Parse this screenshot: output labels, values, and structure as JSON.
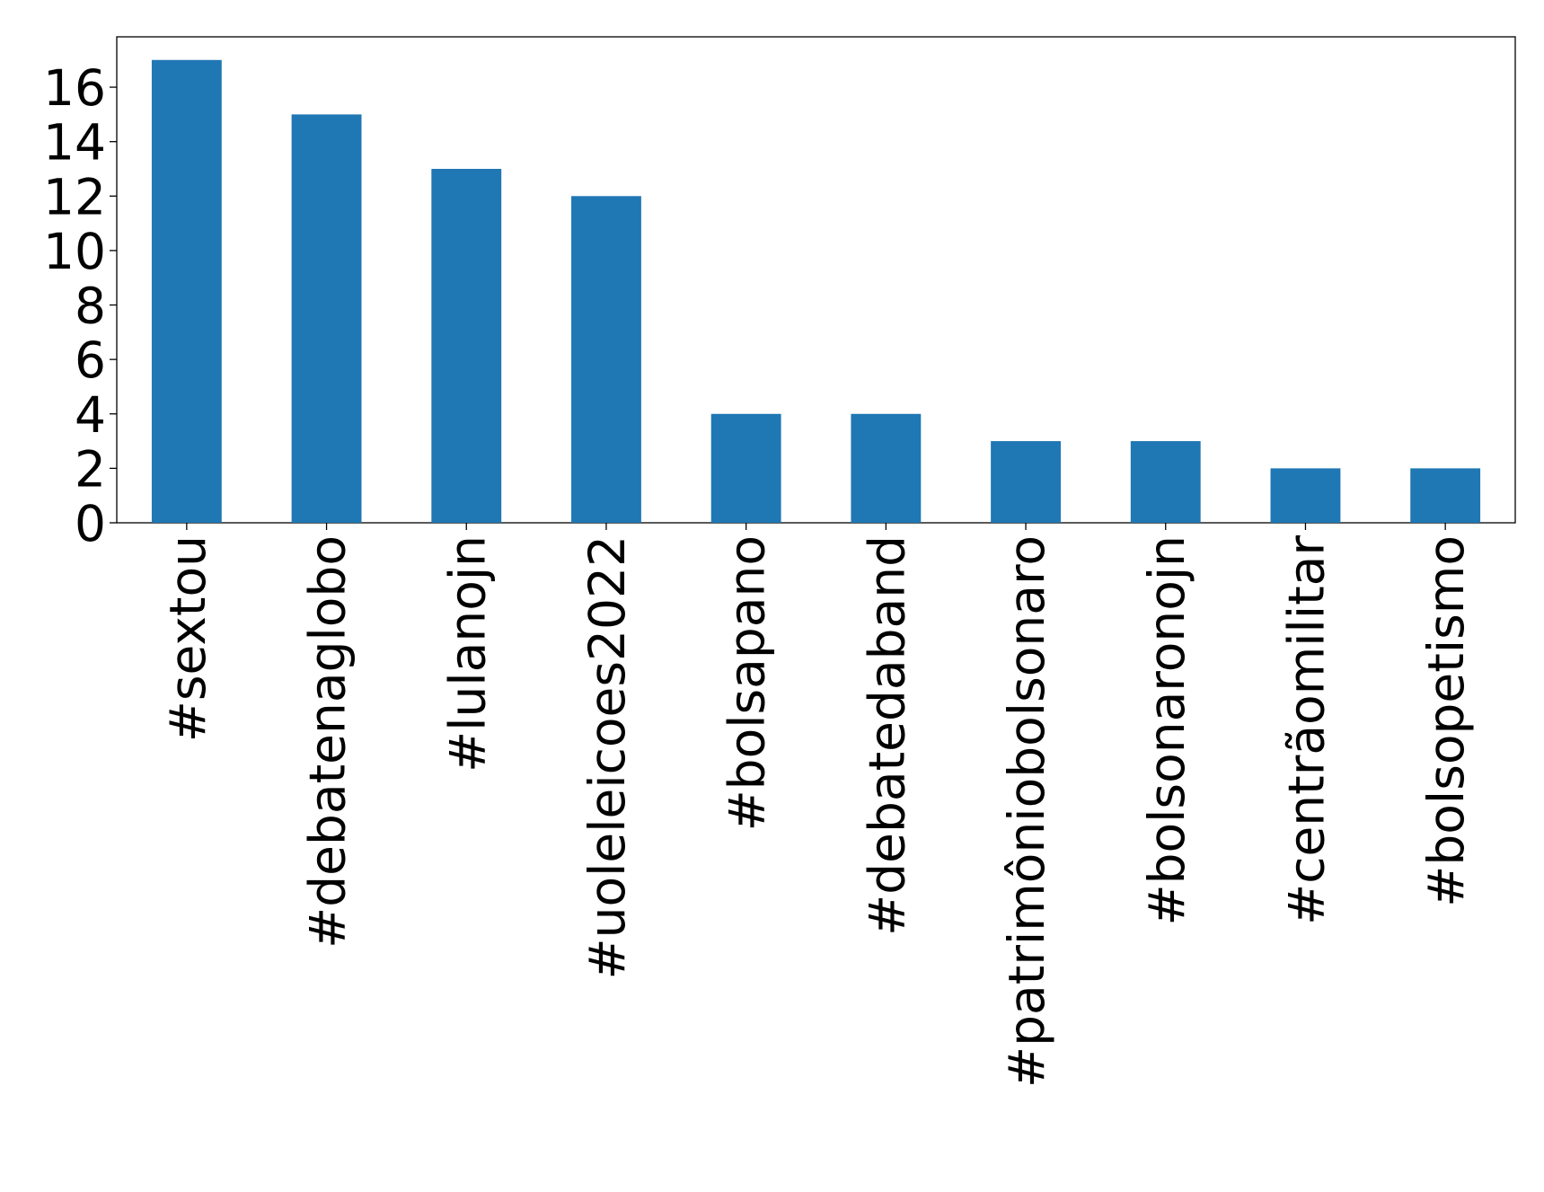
{
  "chart_data": {
    "type": "bar",
    "categories": [
      "#sextou",
      "#debatenaglobo",
      "#lulanojn",
      "#uoleleicoes2022",
      "#bolsapano",
      "#debatedaband",
      "#patrimôniobolsonaro",
      "#bolsonaronojn",
      "#centrãomilitar",
      "#bolsopetismo"
    ],
    "values": [
      17,
      15,
      13,
      12,
      4,
      4,
      3,
      3,
      2,
      2
    ],
    "color": "#1f77b4",
    "ylim": [
      0,
      17.85
    ],
    "yticks": [
      0,
      2,
      4,
      6,
      8,
      10,
      12,
      14,
      16
    ],
    "grid": false
  }
}
